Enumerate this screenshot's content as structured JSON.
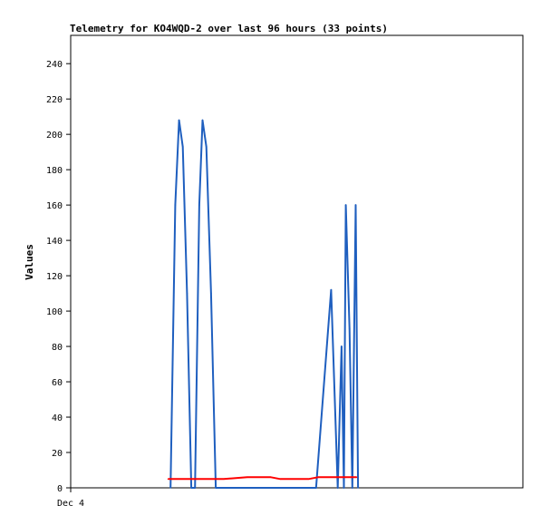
{
  "chart_data": {
    "type": "line",
    "title": "Telemetry for KO4WQD-2 over last 96 hours (33 points)",
    "xlabel": "",
    "ylabel": "Values",
    "x_tick_labels": [
      "Dec 4"
    ],
    "xlim": [
      0,
      96
    ],
    "ylim": [
      0,
      256
    ],
    "y_ticks": [
      0,
      20,
      40,
      60,
      80,
      100,
      120,
      140,
      160,
      180,
      200,
      220,
      240
    ],
    "grid": false,
    "legend": "none",
    "series": [
      {
        "color": "#1f5fbf",
        "points": [
          [
            21.2,
            0
          ],
          [
            22.2,
            160
          ],
          [
            23.0,
            208
          ],
          [
            23.8,
            193
          ],
          [
            24.7,
            110
          ],
          [
            25.6,
            0
          ],
          [
            26.4,
            0
          ],
          [
            27.3,
            160
          ],
          [
            28.0,
            208
          ],
          [
            28.8,
            193
          ],
          [
            29.8,
            110
          ],
          [
            30.8,
            0
          ],
          [
            52.1,
            0
          ],
          [
            55.3,
            112
          ],
          [
            56.7,
            0
          ],
          [
            57.5,
            80
          ],
          [
            58.0,
            0
          ],
          [
            58.4,
            160
          ],
          [
            59.2,
            90
          ],
          [
            59.8,
            0
          ],
          [
            60.5,
            160
          ],
          [
            61.0,
            0
          ]
        ]
      },
      {
        "color": "#ff0000",
        "points": [
          [
            20.7,
            5
          ],
          [
            32.5,
            5
          ],
          [
            37.5,
            6
          ],
          [
            42.5,
            6
          ],
          [
            44.5,
            5
          ],
          [
            50.5,
            5
          ],
          [
            52.5,
            6
          ],
          [
            60.7,
            6
          ]
        ]
      }
    ]
  }
}
